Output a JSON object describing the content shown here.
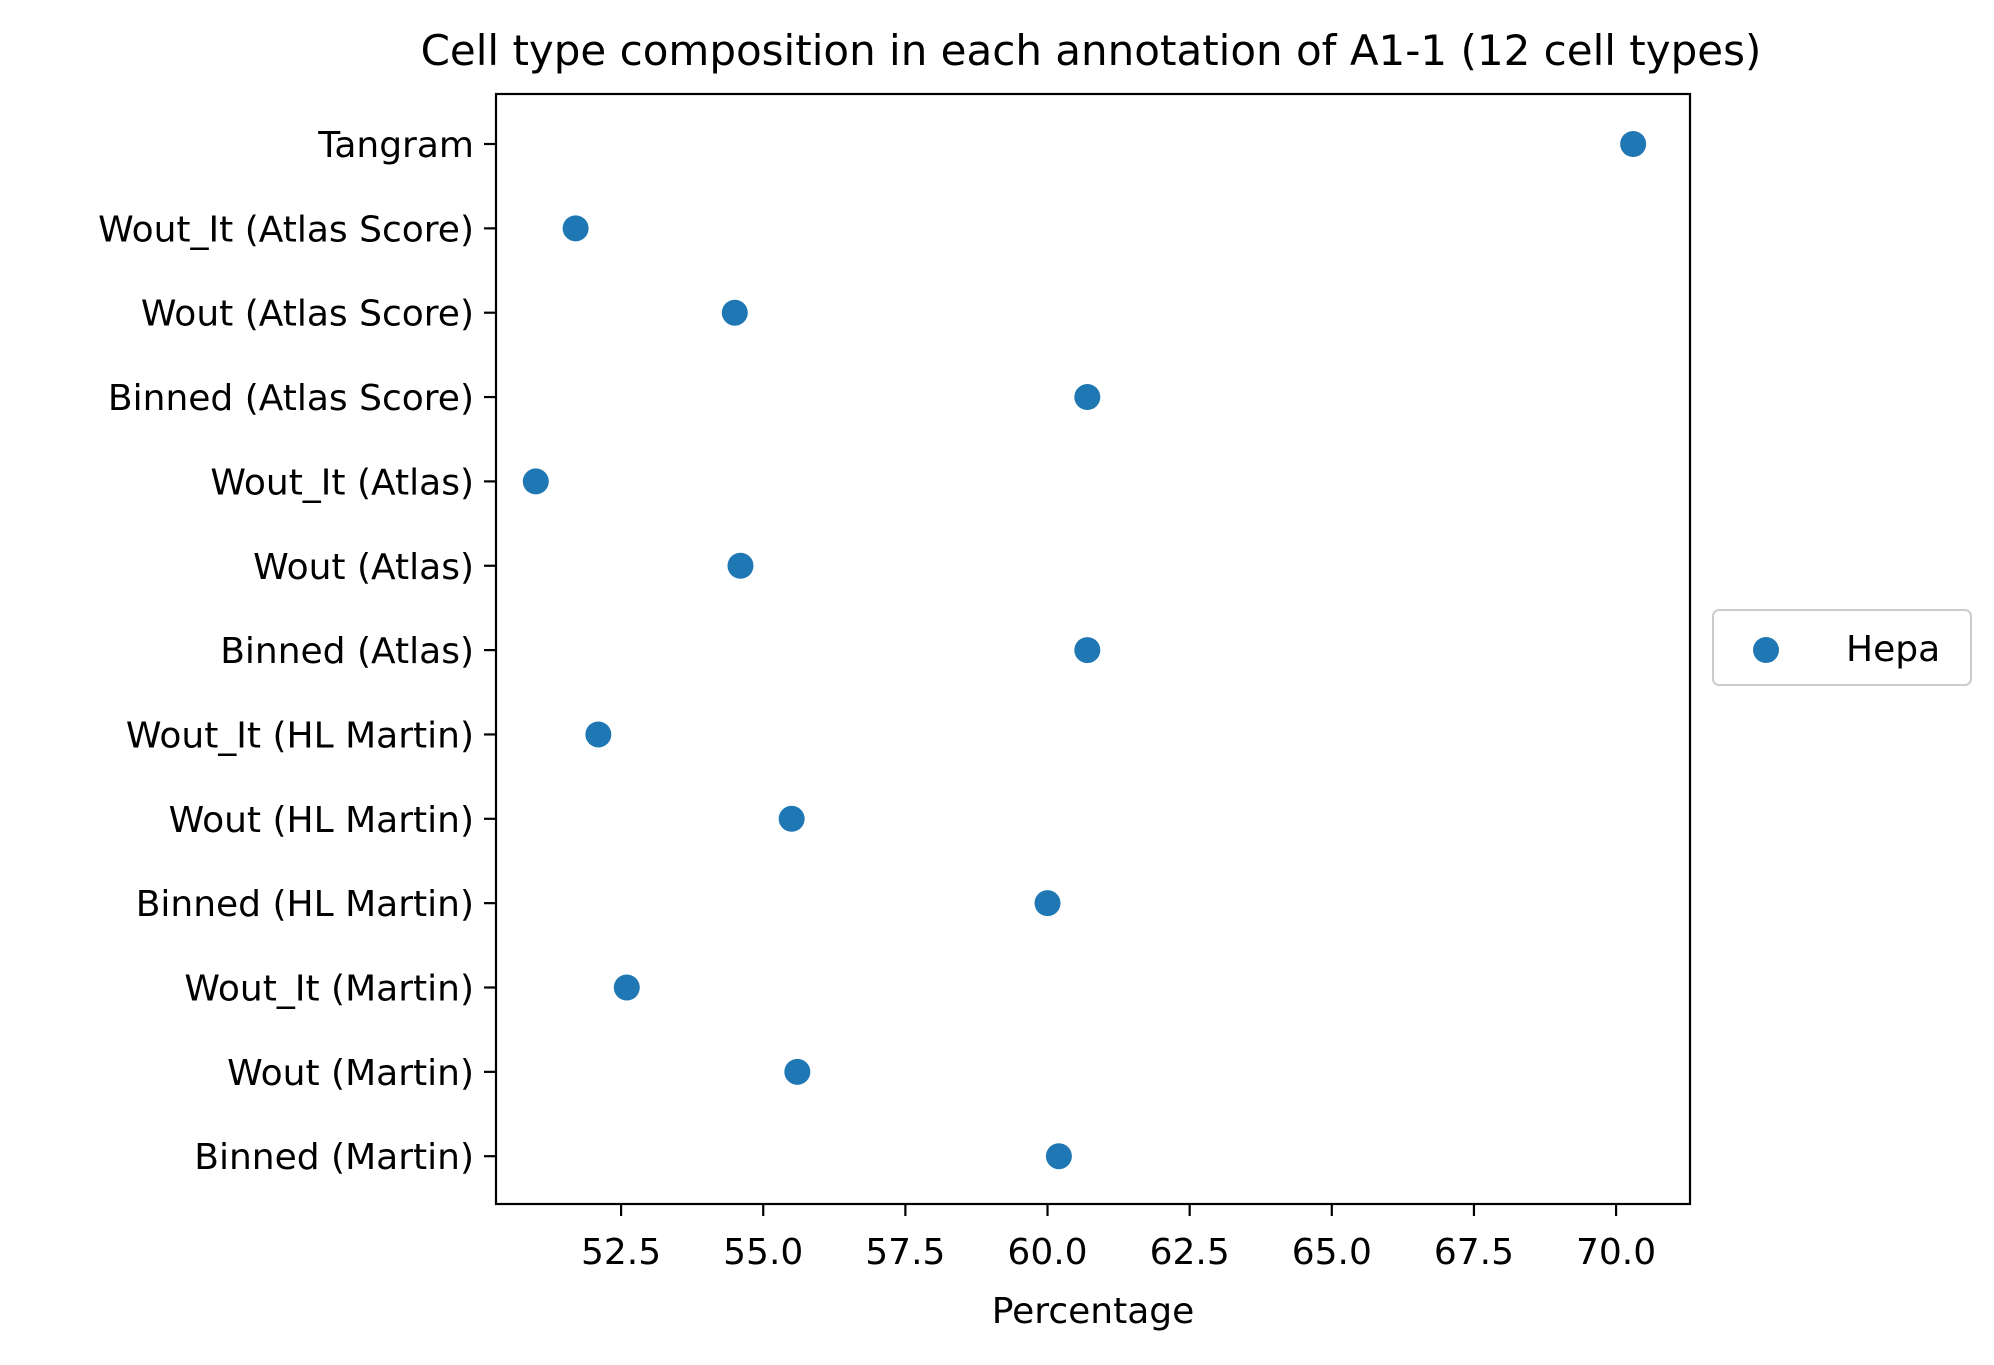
{
  "chart_data": {
    "type": "scatter",
    "title": "Cell type composition in each annotation of A1-1 (12 cell types)",
    "xlabel": "Percentage",
    "ylabel": "",
    "xlim": [
      50.3,
      71.3
    ],
    "x_ticks": [
      52.5,
      55.0,
      57.5,
      60.0,
      62.5,
      65.0,
      67.5,
      70.0
    ],
    "x_tick_labels": [
      "52.5",
      "55.0",
      "57.5",
      "60.0",
      "62.5",
      "65.0",
      "67.5",
      "70.0"
    ],
    "categories": [
      "Tangram",
      "Wout_It (Atlas Score)",
      "Wout (Atlas Score)",
      "Binned (Atlas Score)",
      "Wout_It (Atlas)",
      "Wout (Atlas)",
      "Binned (Atlas)",
      "Wout_It (HL Martin)",
      "Wout (HL Martin)",
      "Binned (HL Martin)",
      "Wout_It (Martin)",
      "Wout (Martin)",
      "Binned (Martin)"
    ],
    "series": [
      {
        "name": "Hepa",
        "color": "#1f77b4",
        "values": [
          70.3,
          51.7,
          54.5,
          60.7,
          51.0,
          54.6,
          60.7,
          52.1,
          55.5,
          60.0,
          52.6,
          55.6,
          60.2
        ]
      }
    ],
    "grid": false,
    "legend": "right-outside"
  }
}
